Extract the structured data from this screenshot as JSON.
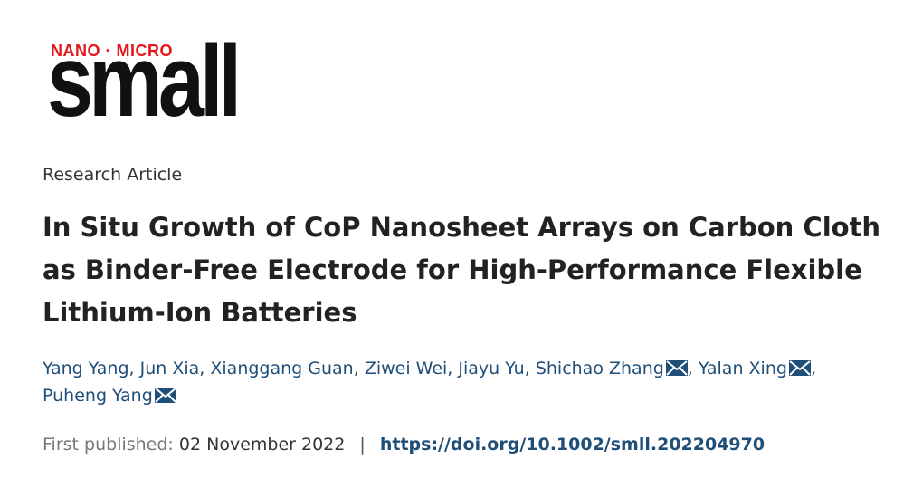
{
  "journal": {
    "logo_top": "NANO · MICRO",
    "logo_word": "small"
  },
  "article": {
    "type": "Research Article",
    "title": "In Situ Growth of CoP Nanosheet Arrays on Carbon Cloth as Binder-Free Electrode for High-Performance Flexible Lithium-Ion Batteries"
  },
  "authors": [
    {
      "name": "Yang Yang",
      "corresponding": false
    },
    {
      "name": "Jun Xia",
      "corresponding": false
    },
    {
      "name": "Xianggang Guan",
      "corresponding": false
    },
    {
      "name": "Ziwei Wei",
      "corresponding": false
    },
    {
      "name": "Jiayu Yu",
      "corresponding": false
    },
    {
      "name": "Shichao Zhang",
      "corresponding": true
    },
    {
      "name": "Yalan Xing",
      "corresponding": true
    },
    {
      "name": "Puheng Yang",
      "corresponding": true
    }
  ],
  "publication": {
    "label": "First published:",
    "date": "02 November 2022",
    "separator": "|",
    "doi": "https://doi.org/10.1002/smll.202204970"
  },
  "colors": {
    "logo_red": "#e3161b",
    "link_blue": "#1f4e79",
    "title_text": "#222222"
  },
  "icons": {
    "corresponding_author": "envelope-icon"
  }
}
